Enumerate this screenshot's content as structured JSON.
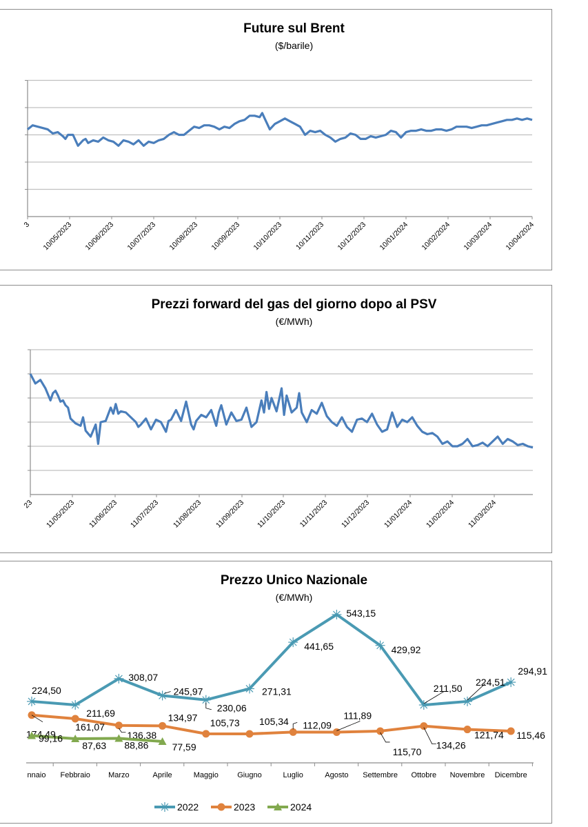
{
  "charts": {
    "brent": {
      "title": "Future sul Brent",
      "subtitle": "($/barile)"
    },
    "psv": {
      "title": "Prezzi forward del gas del giorno dopo al PSV",
      "subtitle": "(€/MWh)"
    },
    "pun": {
      "title": "Prezzo Unico Nazionale",
      "subtitle": "(€/MWh)"
    }
  },
  "chart_data": [
    {
      "type": "line",
      "title": "Future sul Brent",
      "subtitle": "($/barile)",
      "xlabel": "",
      "ylabel": "",
      "y_units_note": "y-axis tick labels are cropped out of view; values expressed in gridline units (x-axis = 0, each horizontal gridline = 1)",
      "ylim": [
        0,
        5
      ],
      "grid": true,
      "legend": "none",
      "x_tick_labels": [
        "3",
        "10/05/2023",
        "10/06/2023",
        "10/07/2023",
        "10/08/2023",
        "10/09/2023",
        "10/10/2023",
        "10/11/2023",
        "10/12/2023",
        "10/01/2024",
        "10/02/2024",
        "10/03/2024",
        "10/04/2024"
      ],
      "series": [
        {
          "name": "Brent",
          "color": "#4a7ebb",
          "x_fraction": [
            0.0,
            0.01,
            0.03,
            0.04,
            0.05,
            0.06,
            0.07,
            0.075,
            0.08,
            0.09,
            0.1,
            0.11,
            0.115,
            0.12,
            0.13,
            0.14,
            0.15,
            0.16,
            0.17,
            0.18,
            0.19,
            0.2,
            0.21,
            0.22,
            0.23,
            0.24,
            0.25,
            0.26,
            0.27,
            0.28,
            0.29,
            0.3,
            0.31,
            0.32,
            0.33,
            0.34,
            0.35,
            0.36,
            0.37,
            0.38,
            0.39,
            0.4,
            0.41,
            0.42,
            0.43,
            0.44,
            0.45,
            0.46,
            0.465,
            0.47,
            0.48,
            0.49,
            0.5,
            0.51,
            0.52,
            0.53,
            0.54,
            0.55,
            0.56,
            0.57,
            0.58,
            0.59,
            0.6,
            0.61,
            0.62,
            0.63,
            0.64,
            0.65,
            0.66,
            0.67,
            0.68,
            0.69,
            0.7,
            0.71,
            0.72,
            0.73,
            0.74,
            0.75,
            0.76,
            0.77,
            0.78,
            0.79,
            0.8,
            0.81,
            0.82,
            0.83,
            0.84,
            0.85,
            0.86,
            0.87,
            0.88,
            0.89,
            0.9,
            0.91,
            0.92,
            0.93,
            0.94,
            0.95,
            0.96,
            0.97,
            0.98,
            0.99,
            1.0
          ],
          "values": [
            3.2,
            3.35,
            3.25,
            3.2,
            3.05,
            3.1,
            2.95,
            2.85,
            3.0,
            3.0,
            2.6,
            2.8,
            2.85,
            2.7,
            2.8,
            2.75,
            2.9,
            2.8,
            2.75,
            2.6,
            2.8,
            2.75,
            2.65,
            2.8,
            2.6,
            2.75,
            2.7,
            2.8,
            2.85,
            3.0,
            3.1,
            3.0,
            3.0,
            3.15,
            3.3,
            3.25,
            3.35,
            3.35,
            3.3,
            3.2,
            3.3,
            3.25,
            3.4,
            3.5,
            3.55,
            3.7,
            3.7,
            3.65,
            3.8,
            3.6,
            3.2,
            3.4,
            3.5,
            3.6,
            3.5,
            3.4,
            3.3,
            3.0,
            3.15,
            3.1,
            3.15,
            3.0,
            2.9,
            2.75,
            2.85,
            2.9,
            3.05,
            3.0,
            2.85,
            2.85,
            2.95,
            2.9,
            2.95,
            3.0,
            3.15,
            3.1,
            2.9,
            3.1,
            3.15,
            3.15,
            3.2,
            3.15,
            3.15,
            3.2,
            3.2,
            3.15,
            3.2,
            3.3,
            3.3,
            3.3,
            3.25,
            3.3,
            3.35,
            3.35,
            3.4,
            3.45,
            3.5,
            3.55,
            3.55,
            3.6,
            3.55,
            3.6,
            3.55
          ]
        }
      ]
    },
    {
      "type": "line",
      "title": "Prezzi forward del gas del giorno dopo al PSV",
      "subtitle": "(€/MWh)",
      "xlabel": "",
      "ylabel": "",
      "y_units_note": "y-axis tick labels are cropped out of view; values expressed in gridline units (x-axis = 0, each horizontal gridline = 1)",
      "ylim": [
        0,
        6
      ],
      "grid": true,
      "legend": "none",
      "x_tick_labels": [
        "23",
        "11/05/2023",
        "11/06/2023",
        "11/07/2023",
        "11/08/2023",
        "11/09/2023",
        "11/10/2023",
        "11/11/2023",
        "11/12/2023",
        "11/01/2024",
        "11/02/2024",
        "11/03/2024"
      ],
      "series": [
        {
          "name": "PSV",
          "color": "#4a7ebb",
          "x_fraction": [
            0.0,
            0.01,
            0.02,
            0.03,
            0.04,
            0.045,
            0.05,
            0.055,
            0.06,
            0.065,
            0.07,
            0.075,
            0.08,
            0.09,
            0.1,
            0.105,
            0.11,
            0.12,
            0.13,
            0.135,
            0.14,
            0.15,
            0.16,
            0.165,
            0.17,
            0.175,
            0.18,
            0.19,
            0.2,
            0.21,
            0.215,
            0.22,
            0.23,
            0.24,
            0.25,
            0.26,
            0.27,
            0.275,
            0.28,
            0.29,
            0.3,
            0.31,
            0.32,
            0.325,
            0.33,
            0.34,
            0.35,
            0.36,
            0.37,
            0.375,
            0.38,
            0.39,
            0.4,
            0.41,
            0.42,
            0.43,
            0.44,
            0.45,
            0.46,
            0.465,
            0.47,
            0.475,
            0.48,
            0.49,
            0.5,
            0.505,
            0.51,
            0.52,
            0.53,
            0.535,
            0.54,
            0.55,
            0.56,
            0.57,
            0.58,
            0.59,
            0.6,
            0.61,
            0.62,
            0.63,
            0.64,
            0.65,
            0.66,
            0.67,
            0.68,
            0.69,
            0.7,
            0.71,
            0.72,
            0.73,
            0.74,
            0.75,
            0.76,
            0.77,
            0.78,
            0.79,
            0.8,
            0.81,
            0.82,
            0.83,
            0.84,
            0.85,
            0.86,
            0.87,
            0.88,
            0.89,
            0.9,
            0.91,
            0.92,
            0.93,
            0.94,
            0.95,
            0.96,
            0.97,
            0.98,
            0.99,
            1.0
          ],
          "values": [
            5.0,
            4.6,
            4.75,
            4.4,
            3.9,
            4.2,
            4.3,
            4.1,
            3.85,
            3.9,
            3.7,
            3.6,
            3.15,
            2.95,
            2.85,
            3.2,
            2.65,
            2.4,
            2.9,
            2.1,
            3.0,
            3.05,
            3.6,
            3.35,
            3.75,
            3.35,
            3.45,
            3.4,
            3.2,
            3.0,
            2.8,
            2.9,
            3.15,
            2.7,
            3.1,
            3.0,
            2.6,
            3.05,
            3.1,
            3.5,
            3.05,
            3.85,
            2.9,
            2.7,
            3.05,
            3.3,
            3.2,
            3.5,
            2.85,
            3.4,
            3.7,
            2.9,
            3.4,
            3.05,
            3.1,
            3.6,
            2.8,
            3.0,
            3.9,
            3.4,
            4.25,
            3.55,
            4.0,
            3.45,
            4.4,
            3.3,
            4.1,
            3.4,
            3.6,
            4.2,
            3.4,
            3.0,
            3.5,
            3.35,
            3.8,
            3.25,
            3.0,
            2.85,
            3.2,
            2.8,
            2.6,
            3.1,
            3.15,
            3.0,
            3.35,
            2.9,
            2.6,
            2.7,
            3.4,
            2.8,
            3.1,
            3.0,
            3.2,
            2.85,
            2.6,
            2.5,
            2.55,
            2.4,
            2.1,
            2.2,
            2.0,
            2.0,
            2.1,
            2.3,
            2.0,
            2.05,
            2.15,
            2.0,
            2.2,
            2.4,
            2.1,
            2.3,
            2.2,
            2.05,
            2.1,
            2.0,
            1.95
          ]
        }
      ]
    },
    {
      "type": "line",
      "title": "Prezzo Unico Nazionale",
      "subtitle": "(€/MWh)",
      "xlabel": "",
      "ylabel": "",
      "grid": false,
      "legend": "bottom",
      "categories": [
        "Gennaio",
        "Febbraio",
        "Marzo",
        "Aprile",
        "Maggio",
        "Giugno",
        "Luglio",
        "Agosto",
        "Settembre",
        "Ottobre",
        "Novembre",
        "Dicembre"
      ],
      "category_labels_visible": [
        "nnaio",
        "Febbraio",
        "Marzo",
        "Aprile",
        "Maggio",
        "Giugno",
        "Luglio",
        "Agosto",
        "Settembre",
        "Ottobre",
        "Novembre",
        "Dicembre"
      ],
      "ylim": [
        0,
        600
      ],
      "series": [
        {
          "name": "2022",
          "color": "#4a9ab3",
          "marker": "star",
          "values": [
            224.5,
            211.69,
            308.07,
            245.97,
            230.06,
            271.31,
            441.65,
            543.15,
            429.92,
            211.5,
            224.51,
            294.91
          ],
          "labels": [
            "224,50",
            "211,69",
            "308,07",
            "245,97",
            "230,06",
            "271,31",
            "441,65",
            "543,15",
            "429,92",
            "211,50",
            "224,51",
            "294,91"
          ]
        },
        {
          "name": "2023",
          "color": "#e0823d",
          "marker": "circle",
          "values": [
            174.49,
            161.07,
            136.38,
            134.97,
            105.73,
            105.34,
            112.09,
            111.89,
            115.7,
            134.26,
            121.74,
            115.46
          ],
          "labels": [
            "174,49",
            "161,07",
            "136,38",
            "134,97",
            "105,73",
            "105,34",
            "112,09",
            "111,89",
            "115,70",
            "134,26",
            "121,74",
            "115,46"
          ]
        },
        {
          "name": "2024",
          "color": "#82a94f",
          "marker": "triangle",
          "values": [
            99.16,
            87.63,
            88.86,
            77.59
          ],
          "labels": [
            "99,16",
            "87,63",
            "88,86",
            "77,59"
          ]
        }
      ]
    }
  ]
}
